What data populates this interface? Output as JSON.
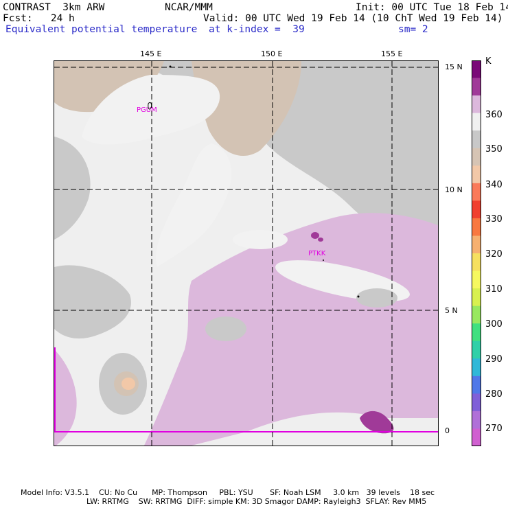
{
  "header": {
    "model": "CONTRAST  3km ARW",
    "center": "NCAR/MMM",
    "init": "Init: 00 UTC Tue 18 Feb 14",
    "fcst": "Fcst:   24 h",
    "valid": "Valid: 00 UTC Wed 19 Feb 14 (10 ChT Wed 19 Feb 14)",
    "field": "Equivalent potential temperature",
    "level": "at k-index =  39",
    "smooth": "sm= 2"
  },
  "axes": {
    "lon_labels": [
      "145 E",
      "150 E",
      "155 E"
    ],
    "lat_labels": [
      "15 N",
      "10 N",
      "5 N",
      "0"
    ]
  },
  "stations": [
    {
      "id": "PGUM"
    },
    {
      "id": "PTKK"
    }
  ],
  "colorbar": {
    "unit": "K",
    "labels": [
      "360",
      "350",
      "340",
      "330",
      "320",
      "310",
      "300",
      "290",
      "280",
      "270"
    ],
    "colors": [
      "#7a0a78",
      "#a03a98",
      "#dcb8dc",
      "#f0f0f0",
      "#c8c8c8",
      "#d6c4b4",
      "#f2c8a8",
      "#fa7a5a",
      "#f04030",
      "#f87840",
      "#f6b070",
      "#f6e060",
      "#f6f860",
      "#d8f050",
      "#98e860",
      "#40e080",
      "#30d0a8",
      "#30b8d8",
      "#5078e8",
      "#8060d8",
      "#b070d8",
      "#d060d0"
    ]
  },
  "footer": {
    "line1": "Model Info: V3.5.1    CU: No Cu      MP: Thompson     PBL: YSU       SF: Noah LSM     3.0 km   39 levels    18 sec",
    "line2": "LW: RRTMG    SW: RRTMG  DIFF: simple KM: 3D Smagor DAMP: Rayleigh3  SFLAY: Rev MM5"
  }
}
